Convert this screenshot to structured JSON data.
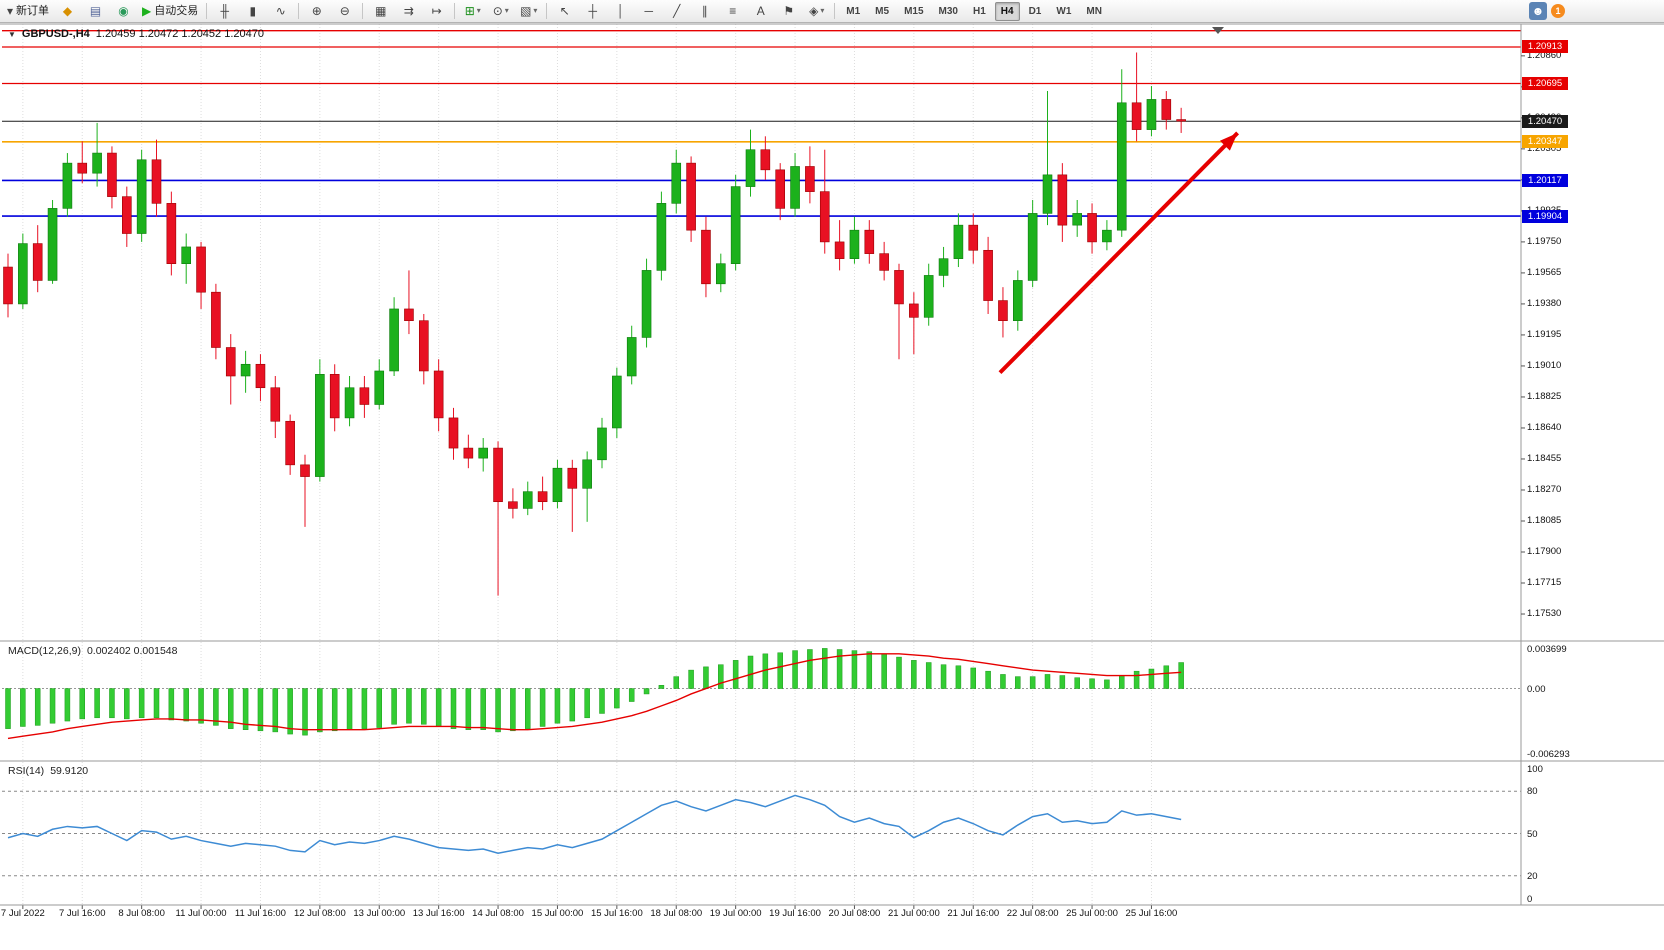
{
  "colors": {
    "up": "#1cb11c",
    "down": "#e81123",
    "up_border": "#0c7a0c",
    "down_border": "#990000",
    "macd_bar": "#33cc33",
    "macd_bar_border": "#1d9a1d",
    "macd_signal": "#e60000",
    "rsi_line": "#3d8bd4",
    "grid": "#dddddd",
    "separator": "#9a9a9a",
    "arrow": "#e60000"
  },
  "toolbar": {
    "badge_count": "1",
    "groups": [
      {
        "items": [
          {
            "name": "new-order-button",
            "glyph": "▾",
            "label": "新订单"
          },
          {
            "name": "mql5-market-icon",
            "glyph": "◆",
            "color": "#d89000"
          },
          {
            "name": "print-icon",
            "glyph": "▤",
            "color": "#556699"
          },
          {
            "name": "help-icon",
            "glyph": "◉",
            "color": "#2a9a5a"
          },
          {
            "name": "autotrading-button",
            "glyph": "▶",
            "color": "#1db11d",
            "label": "自动交易"
          }
        ]
      },
      {
        "items": [
          {
            "name": "bar-chart-icon",
            "glyph": "╫"
          },
          {
            "name": "candlestick-chart-icon",
            "glyph": "▮"
          },
          {
            "name": "line-chart-icon",
            "glyph": "∿"
          }
        ]
      },
      {
        "items": [
          {
            "name": "zoom-in-icon",
            "glyph": "⊕"
          },
          {
            "name": "zoom-out-icon",
            "glyph": "⊖"
          }
        ]
      },
      {
        "items": [
          {
            "name": "tile-windows-icon",
            "glyph": "▦"
          },
          {
            "name": "auto-scroll-icon",
            "glyph": "⇉"
          },
          {
            "name": "chart-shift-icon",
            "glyph": "↦"
          }
        ]
      },
      {
        "items": [
          {
            "name": "add-indicator-icon",
            "glyph": "⊞",
            "color": "#1a8f1a",
            "drop": true
          },
          {
            "name": "periods-icon",
            "glyph": "⊙",
            "drop": true
          },
          {
            "name": "template-icon",
            "glyph": "▧",
            "drop": true
          }
        ]
      },
      {
        "items": [
          {
            "name": "cursor-icon",
            "glyph": "↖"
          },
          {
            "name": "crosshair-icon",
            "glyph": "┼"
          },
          {
            "name": "vertical-line-icon",
            "glyph": "│"
          },
          {
            "name": "horizontal-line-icon",
            "glyph": "─"
          },
          {
            "name": "trendline-icon",
            "glyph": "╱"
          },
          {
            "name": "channel-icon",
            "glyph": "∥"
          },
          {
            "name": "fibonacci-icon",
            "glyph": "≡"
          },
          {
            "name": "text-icon",
            "glyph": "A"
          },
          {
            "name": "text-label-icon",
            "glyph": "⚑"
          },
          {
            "name": "arrows-icon",
            "glyph": "◈",
            "drop": true
          }
        ]
      },
      {
        "items": [
          {
            "type": "tf",
            "label": "M1"
          },
          {
            "type": "tf",
            "label": "M5"
          },
          {
            "type": "tf",
            "label": "M15"
          },
          {
            "type": "tf",
            "label": "M30"
          },
          {
            "type": "tf",
            "label": "H1"
          },
          {
            "type": "tf",
            "label": "H4",
            "active": true
          },
          {
            "type": "tf",
            "label": "D1"
          },
          {
            "type": "tf",
            "label": "W1"
          },
          {
            "type": "tf",
            "label": "MN"
          }
        ]
      }
    ]
  },
  "chart_data": [
    {
      "type": "candlestick",
      "title": "GBPUSD-,H4",
      "collapse_glyph": "▼",
      "ohlc_display": "1.20459 1.20472 1.20452 1.20470",
      "ylim": [
        1.17375,
        1.2105
      ],
      "candles": [
        [
          1.196,
          1.1968,
          1.193,
          1.1938
        ],
        [
          1.1938,
          1.198,
          1.1935,
          1.1974
        ],
        [
          1.1974,
          1.1985,
          1.1945,
          1.1952
        ],
        [
          1.1952,
          1.2,
          1.195,
          1.1995
        ],
        [
          1.1995,
          1.2028,
          1.199,
          1.2022
        ],
        [
          1.2022,
          1.2035,
          1.201,
          1.2016
        ],
        [
          1.2016,
          1.2046,
          1.2008,
          1.2028
        ],
        [
          1.2028,
          1.2032,
          1.1995,
          1.2002
        ],
        [
          1.2002,
          1.2008,
          1.1972,
          1.198
        ],
        [
          1.198,
          1.203,
          1.1975,
          1.2024
        ],
        [
          1.2024,
          1.2036,
          1.199,
          1.1998
        ],
        [
          1.1998,
          1.2005,
          1.1955,
          1.1962
        ],
        [
          1.1962,
          1.198,
          1.195,
          1.1972
        ],
        [
          1.1972,
          1.1975,
          1.1935,
          1.1945
        ],
        [
          1.1945,
          1.195,
          1.1905,
          1.1912
        ],
        [
          1.1912,
          1.192,
          1.1878,
          1.1895
        ],
        [
          1.1895,
          1.191,
          1.1885,
          1.1902
        ],
        [
          1.1902,
          1.1908,
          1.188,
          1.1888
        ],
        [
          1.1888,
          1.1895,
          1.1858,
          1.1868
        ],
        [
          1.1868,
          1.1872,
          1.1836,
          1.1842
        ],
        [
          1.1842,
          1.1848,
          1.1805,
          1.1835
        ],
        [
          1.1835,
          1.1905,
          1.1832,
          1.1896
        ],
        [
          1.1896,
          1.1902,
          1.1862,
          1.187
        ],
        [
          1.187,
          1.1895,
          1.1865,
          1.1888
        ],
        [
          1.1888,
          1.1895,
          1.187,
          1.1878
        ],
        [
          1.1878,
          1.1905,
          1.1875,
          1.1898
        ],
        [
          1.1898,
          1.1942,
          1.1895,
          1.1935
        ],
        [
          1.1935,
          1.1958,
          1.192,
          1.1928
        ],
        [
          1.1928,
          1.1932,
          1.189,
          1.1898
        ],
        [
          1.1898,
          1.1905,
          1.1862,
          1.187
        ],
        [
          1.187,
          1.1876,
          1.1845,
          1.1852
        ],
        [
          1.1852,
          1.186,
          1.184,
          1.1846
        ],
        [
          1.1846,
          1.1858,
          1.1838,
          1.1852
        ],
        [
          1.1852,
          1.1856,
          1.1764,
          1.182
        ],
        [
          1.182,
          1.1828,
          1.181,
          1.1816
        ],
        [
          1.1816,
          1.1832,
          1.1812,
          1.1826
        ],
        [
          1.1826,
          1.1835,
          1.1815,
          1.182
        ],
        [
          1.182,
          1.1845,
          1.1816,
          1.184
        ],
        [
          1.184,
          1.1845,
          1.1802,
          1.1828
        ],
        [
          1.1828,
          1.185,
          1.1808,
          1.1845
        ],
        [
          1.1845,
          1.187,
          1.184,
          1.1864
        ],
        [
          1.1864,
          1.19,
          1.1858,
          1.1895
        ],
        [
          1.1895,
          1.1925,
          1.189,
          1.1918
        ],
        [
          1.1918,
          1.1965,
          1.1912,
          1.1958
        ],
        [
          1.1958,
          1.2005,
          1.1952,
          1.1998
        ],
        [
          1.1998,
          1.203,
          1.1992,
          1.2022
        ],
        [
          1.2022,
          1.2026,
          1.1975,
          1.1982
        ],
        [
          1.1982,
          1.199,
          1.1942,
          1.195
        ],
        [
          1.195,
          1.1968,
          1.1945,
          1.1962
        ],
        [
          1.1962,
          1.2015,
          1.1958,
          1.2008
        ],
        [
          1.2008,
          1.2042,
          1.2002,
          1.203
        ],
        [
          1.203,
          1.2038,
          1.2012,
          1.2018
        ],
        [
          1.2018,
          1.2022,
          1.1988,
          1.1995
        ],
        [
          1.1995,
          1.2028,
          1.199,
          1.202
        ],
        [
          1.202,
          1.2032,
          1.1998,
          1.2005
        ],
        [
          1.2005,
          1.203,
          1.1968,
          1.1975
        ],
        [
          1.1975,
          1.1988,
          1.1958,
          1.1965
        ],
        [
          1.1965,
          1.199,
          1.1962,
          1.1982
        ],
        [
          1.1982,
          1.1988,
          1.1962,
          1.1968
        ],
        [
          1.1968,
          1.1975,
          1.1952,
          1.1958
        ],
        [
          1.1958,
          1.1962,
          1.1905,
          1.1938
        ],
        [
          1.1938,
          1.1945,
          1.1908,
          1.193
        ],
        [
          1.193,
          1.1962,
          1.1925,
          1.1955
        ],
        [
          1.1955,
          1.1972,
          1.1948,
          1.1965
        ],
        [
          1.1965,
          1.1992,
          1.196,
          1.1985
        ],
        [
          1.1985,
          1.1992,
          1.1962,
          1.197
        ],
        [
          1.197,
          1.1978,
          1.1932,
          1.194
        ],
        [
          1.194,
          1.1948,
          1.1918,
          1.1928
        ],
        [
          1.1928,
          1.1958,
          1.1922,
          1.1952
        ],
        [
          1.1952,
          1.2,
          1.1948,
          1.1992
        ],
        [
          1.1992,
          1.2065,
          1.1985,
          1.2015
        ],
        [
          1.2015,
          1.2022,
          1.1975,
          1.1985
        ],
        [
          1.1985,
          1.2,
          1.1978,
          1.1992
        ],
        [
          1.1992,
          1.1998,
          1.1968,
          1.1975
        ],
        [
          1.1975,
          1.1988,
          1.197,
          1.1982
        ],
        [
          1.1982,
          1.2078,
          1.1978,
          1.2058
        ],
        [
          1.2058,
          1.2088,
          1.2035,
          1.2042
        ],
        [
          1.2042,
          1.2068,
          1.2038,
          1.206
        ],
        [
          1.206,
          1.2065,
          1.2042,
          1.2048
        ],
        [
          1.2048,
          1.2055,
          1.204,
          1.2047
        ]
      ],
      "time_labels": [
        {
          "i": 1,
          "t": "7 Jul 2022"
        },
        {
          "i": 5,
          "t": "7 Jul 16:00"
        },
        {
          "i": 9,
          "t": "8 Jul 08:00"
        },
        {
          "i": 13,
          "t": "11 Jul 00:00"
        },
        {
          "i": 17,
          "t": "11 Jul 16:00"
        },
        {
          "i": 21,
          "t": "12 Jul 08:00"
        },
        {
          "i": 25,
          "t": "13 Jul 00:00"
        },
        {
          "i": 29,
          "t": "13 Jul 16:00"
        },
        {
          "i": 33,
          "t": "14 Jul 08:00"
        },
        {
          "i": 37,
          "t": "15 Jul 00:00"
        },
        {
          "i": 41,
          "t": "15 Jul 16:00"
        },
        {
          "i": 45,
          "t": "18 Jul 08:00"
        },
        {
          "i": 49,
          "t": "19 Jul 00:00"
        },
        {
          "i": 53,
          "t": "19 Jul 16:00"
        },
        {
          "i": 57,
          "t": "20 Jul 08:00"
        },
        {
          "i": 61,
          "t": "21 Jul 00:00"
        },
        {
          "i": 65,
          "t": "21 Jul 16:00"
        },
        {
          "i": 69,
          "t": "22 Jul 08:00"
        },
        {
          "i": 73,
          "t": "25 Jul 00:00"
        },
        {
          "i": 77,
          "t": "25 Jul 16:00"
        }
      ],
      "price_ticks": [
        1.2086,
        1.20675,
        1.2049,
        1.20305,
        1.2012,
        1.19935,
        1.1975,
        1.19565,
        1.1938,
        1.19195,
        1.1901,
        1.18825,
        1.1864,
        1.18455,
        1.1827,
        1.18085,
        1.179,
        1.17715,
        1.1753
      ],
      "hlines": [
        {
          "price": 1.2101,
          "color": "#e60000",
          "label": "",
          "width": 1.3
        },
        {
          "price": 1.20913,
          "color": "#e60000",
          "label": "1.20913",
          "width": 1.3
        },
        {
          "price": 1.20695,
          "color": "#e60000",
          "label": "1.20695",
          "width": 1.3
        },
        {
          "price": 1.2047,
          "color": "#1a1a1a",
          "label": "1.20470",
          "width": 1
        },
        {
          "price": 1.20347,
          "color": "#f7a500",
          "label": "1.20347",
          "width": 1.6
        },
        {
          "price": 1.20117,
          "color": "#0000dd",
          "label": "1.20117",
          "width": 1.6
        },
        {
          "price": 1.19904,
          "color": "#0000dd",
          "label": "1.19904",
          "width": 1.6
        }
      ],
      "arrow": {
        "from_index": 66.8,
        "from_price": 1.1897,
        "to_index": 82.8,
        "to_price": 1.204
      }
    },
    {
      "type": "bar",
      "title": "MACD(12,26,9)",
      "display_values": "0.002402 0.001548",
      "ylim": [
        -0.0065,
        0.0042
      ],
      "values": [
        -0.0037,
        -0.0035,
        -0.0034,
        -0.0032,
        -0.003,
        -0.0028,
        -0.0027,
        -0.0027,
        -0.0028,
        -0.0027,
        -0.0027,
        -0.0029,
        -0.003,
        -0.0032,
        -0.0034,
        -0.0037,
        -0.0038,
        -0.0039,
        -0.004,
        -0.0042,
        -0.0043,
        -0.004,
        -0.0039,
        -0.0038,
        -0.0037,
        -0.0036,
        -0.0033,
        -0.0032,
        -0.0033,
        -0.0035,
        -0.0037,
        -0.0038,
        -0.0038,
        -0.004,
        -0.0039,
        -0.0037,
        -0.0035,
        -0.0032,
        -0.003,
        -0.0027,
        -0.0023,
        -0.0018,
        -0.0012,
        -0.0005,
        0.0003,
        0.0011,
        0.0017,
        0.002,
        0.0022,
        0.0026,
        0.003,
        0.0032,
        0.0033,
        0.0035,
        0.0036,
        0.0037,
        0.0036,
        0.0035,
        0.0034,
        0.0032,
        0.0029,
        0.0026,
        0.0024,
        0.0022,
        0.0021,
        0.0019,
        0.0016,
        0.0013,
        0.0011,
        0.0011,
        0.0013,
        0.0012,
        0.001,
        0.0009,
        0.0008,
        0.0012,
        0.0016,
        0.0018,
        0.0021,
        0.0024
      ],
      "signal": [
        -0.0046,
        -0.0044,
        -0.0042,
        -0.004,
        -0.0037,
        -0.0035,
        -0.0033,
        -0.0031,
        -0.003,
        -0.0029,
        -0.0028,
        -0.0028,
        -0.0029,
        -0.0029,
        -0.003,
        -0.0031,
        -0.0033,
        -0.0034,
        -0.0035,
        -0.0037,
        -0.0038,
        -0.0038,
        -0.0038,
        -0.0038,
        -0.0038,
        -0.0037,
        -0.0036,
        -0.0035,
        -0.0035,
        -0.0035,
        -0.0035,
        -0.0036,
        -0.0036,
        -0.0037,
        -0.0038,
        -0.0038,
        -0.0037,
        -0.0036,
        -0.0035,
        -0.0033,
        -0.0031,
        -0.0028,
        -0.0025,
        -0.0021,
        -0.0016,
        -0.0011,
        -0.0005,
        0.0,
        0.0005,
        0.0009,
        0.0013,
        0.0017,
        0.002,
        0.0023,
        0.0026,
        0.0028,
        0.003,
        0.0031,
        0.0032,
        0.0032,
        0.0032,
        0.0031,
        0.003,
        0.0028,
        0.0027,
        0.0025,
        0.0023,
        0.0021,
        0.0019,
        0.0017,
        0.0016,
        0.0015,
        0.0014,
        0.0013,
        0.0012,
        0.0012,
        0.0012,
        0.0013,
        0.0014,
        0.0015
      ],
      "axis_labels": [
        {
          "v": 0.003699,
          "t": "0.003699"
        },
        {
          "v": 0,
          "t": "0.00"
        },
        {
          "v": -0.006293,
          "t": "-0.006293"
        }
      ]
    },
    {
      "type": "line",
      "title": "RSI(14)",
      "display_value": "59.9120",
      "ylim": [
        0,
        100
      ],
      "values": [
        47,
        50,
        48,
        53,
        55,
        54,
        55,
        50,
        45,
        52,
        51,
        46,
        48,
        45,
        43,
        41,
        43,
        42,
        41,
        38,
        37,
        45,
        42,
        44,
        43,
        45,
        48,
        46,
        43,
        40,
        39,
        38,
        39,
        36,
        38,
        40,
        39,
        42,
        40,
        43,
        46,
        52,
        58,
        64,
        70,
        73,
        69,
        66,
        70,
        74,
        72,
        69,
        73,
        77,
        74,
        70,
        62,
        58,
        61,
        57,
        55,
        47,
        52,
        58,
        61,
        57,
        52,
        49,
        56,
        62,
        64,
        58,
        59,
        57,
        58,
        66,
        63,
        64,
        62,
        59.9
      ],
      "levels": [
        80,
        50,
        20
      ],
      "axis_values": [
        100,
        80,
        50,
        20,
        0
      ]
    }
  ]
}
